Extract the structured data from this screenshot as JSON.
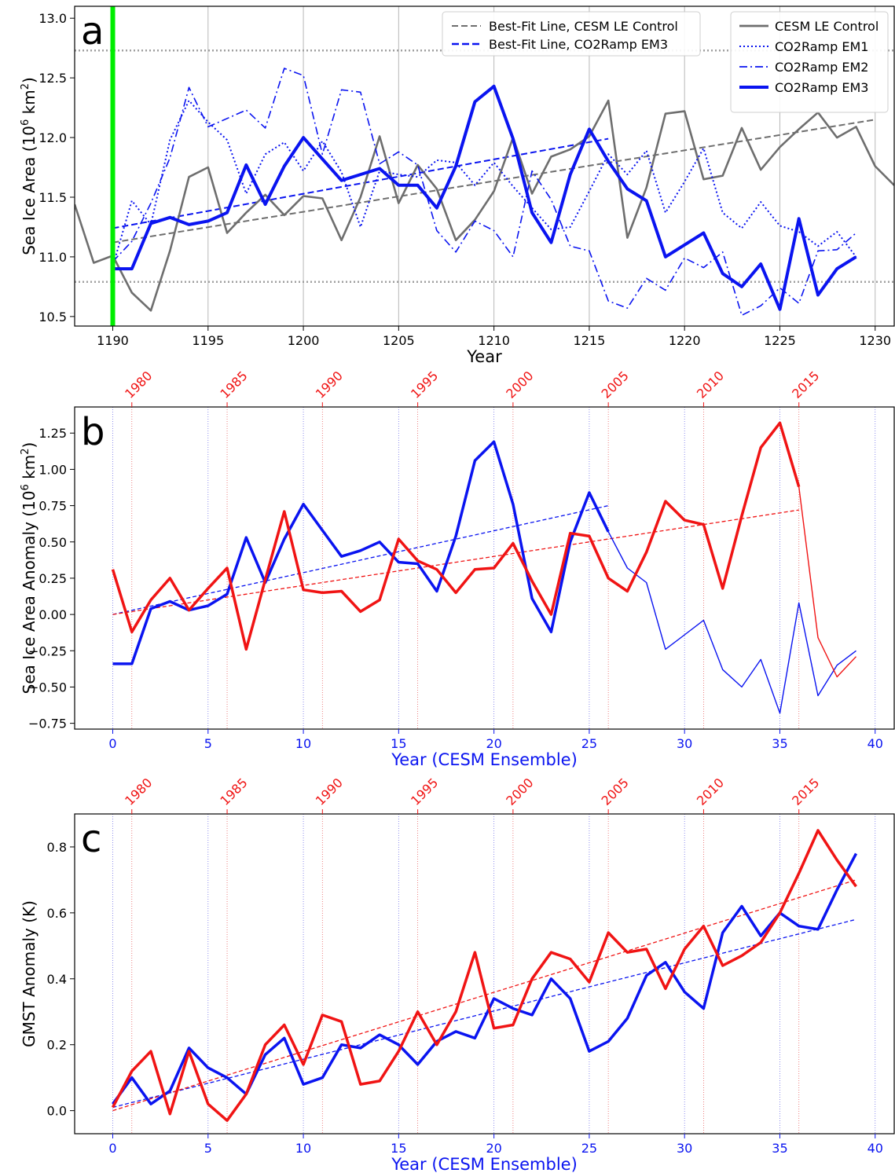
{
  "colors": {
    "control": "#6e6e6e",
    "ramp": "#0a14f0",
    "obs": "#f01414",
    "marker": "#00ee00",
    "limit": "#a0a0a0",
    "obsGrid": "#e86060",
    "ensGrid": "#7070e8"
  },
  "chart_data": [
    {
      "id": "a",
      "type": "line",
      "panel_label": "a",
      "xlabel": "Year",
      "ylabel": "Sea Ice Area (10",
      "ylabel_sup": "6",
      "ylabel_tail": " km",
      "ylabel_sup2": "2",
      "ylabel_end": ")",
      "xlim": [
        1188,
        1231
      ],
      "ylim": [
        10.42,
        13.1
      ],
      "xticks": [
        1190,
        1195,
        1200,
        1205,
        1210,
        1215,
        1220,
        1225,
        1230
      ],
      "yticks": [
        10.5,
        11.0,
        11.5,
        12.0,
        12.5,
        13.0
      ],
      "ytick_labels": [
        "10.5",
        "11.0",
        "11.5",
        "12.0",
        "12.5",
        "13.0"
      ],
      "grid": "x",
      "reference_lines": [
        {
          "y": 12.73
        },
        {
          "y": 10.79
        }
      ],
      "start_marker_x": 1190,
      "legend_left": [
        "Best-Fit Line, CESM LE Control",
        "Best-Fit Line, CO2Ramp EM3"
      ],
      "legend_right": [
        "CESM LE Control",
        "CO2Ramp EM1",
        "CO2Ramp EM2",
        "CO2Ramp EM3"
      ],
      "series": [
        {
          "name": "CESM LE Control",
          "style": "control",
          "x_start": 1188,
          "values": [
            11.44,
            10.95,
            11.01,
            10.7,
            10.55,
            11.05,
            11.67,
            11.75,
            11.2,
            11.37,
            11.52,
            11.35,
            11.51,
            11.49,
            11.14,
            11.5,
            12.01,
            11.45,
            11.77,
            11.57,
            11.14,
            11.31,
            11.55,
            12.0,
            11.53,
            11.84,
            11.9,
            12.01,
            12.31,
            11.16,
            11.58,
            12.2,
            12.22,
            11.65,
            11.68,
            12.08,
            11.73,
            11.92,
            12.07,
            12.21,
            12.0,
            12.09,
            11.76,
            11.6
          ]
        },
        {
          "name": "CO2Ramp EM1",
          "style": "dotted",
          "x_start": 1190,
          "values": [
            10.92,
            11.47,
            11.27,
            11.98,
            12.31,
            12.13,
            11.98,
            11.53,
            11.86,
            11.96,
            11.72,
            11.97,
            11.71,
            11.25,
            11.72,
            11.69,
            11.67,
            11.81,
            11.79,
            11.6,
            11.79,
            11.59,
            11.41,
            11.23,
            11.25,
            11.55,
            11.86,
            11.69,
            11.89,
            11.37,
            11.63,
            11.91,
            11.37,
            11.24,
            11.46,
            11.26,
            11.21,
            11.09,
            11.21,
            11.0
          ]
        },
        {
          "name": "CO2Ramp EM2",
          "style": "dashdot",
          "x_start": 1190,
          "values": [
            10.96,
            11.13,
            11.45,
            11.83,
            12.42,
            12.09,
            12.16,
            12.23,
            12.08,
            12.58,
            12.52,
            11.86,
            12.4,
            12.38,
            11.78,
            11.88,
            11.77,
            11.22,
            11.04,
            11.3,
            11.22,
            11.0,
            11.72,
            11.48,
            11.09,
            11.05,
            10.63,
            10.57,
            10.82,
            10.72,
            10.99,
            10.91,
            11.04,
            10.51,
            10.59,
            10.74,
            10.61,
            11.05,
            11.06,
            11.2
          ]
        },
        {
          "name": "CO2Ramp EM3",
          "style": "thick",
          "x_start": 1190,
          "values": [
            10.9,
            10.9,
            11.28,
            11.33,
            11.27,
            11.3,
            11.37,
            11.77,
            11.44,
            11.76,
            12.0,
            11.82,
            11.64,
            11.69,
            11.74,
            11.6,
            11.6,
            11.41,
            11.76,
            12.3,
            12.43,
            11.99,
            11.37,
            11.12,
            11.69,
            12.07,
            11.8,
            11.57,
            11.47,
            11.0,
            11.1,
            11.2,
            10.86,
            10.75,
            10.94,
            10.56,
            11.32,
            10.68,
            10.9,
            11.0
          ]
        }
      ],
      "trendlines": [
        {
          "name": "Best-Fit Line, CESM LE Control",
          "style": "control",
          "x": [
            1190,
            1230
          ],
          "y": [
            11.12,
            12.15
          ]
        },
        {
          "name": "Best-Fit Line, CO2Ramp EM3",
          "style": "ramp",
          "x": [
            1190,
            1216
          ],
          "y": [
            11.24,
            11.99
          ]
        }
      ]
    },
    {
      "id": "b",
      "type": "line",
      "panel_label": "b",
      "xlabel": "Year (CESM Ensemble)",
      "ylabel": "Sea Ice Area Anomaly (10",
      "ylabel_sup": "6",
      "ylabel_tail": " km",
      "ylabel_sup2": "2",
      "ylabel_end": ")",
      "xlim": [
        -2,
        41
      ],
      "ylim": [
        -0.79,
        1.43
      ],
      "xticks": [
        0,
        5,
        10,
        15,
        20,
        25,
        30,
        35,
        40
      ],
      "yticks": [
        -0.75,
        -0.5,
        -0.25,
        0.0,
        0.25,
        0.5,
        0.75,
        1.0,
        1.25
      ],
      "ytick_labels": [
        "−0.75",
        "−0.50",
        "−0.25",
        "0.00",
        "0.25",
        "0.50",
        "0.75",
        "1.00",
        "1.25"
      ],
      "top_ticks": [
        1,
        6,
        11,
        16,
        21,
        26,
        31,
        36
      ],
      "top_tick_labels": [
        "1980",
        "1985",
        "1990",
        "1995",
        "2000",
        "2005",
        "2010",
        "2015"
      ],
      "series": [
        {
          "name": "",
          "style": "ens",
          "thick_until": 26,
          "values": [
            -0.34,
            -0.34,
            0.04,
            0.09,
            0.03,
            0.06,
            0.14,
            0.53,
            0.22,
            0.52,
            0.76,
            0.58,
            0.4,
            0.44,
            0.5,
            0.36,
            0.35,
            0.16,
            0.54,
            1.06,
            1.19,
            0.76,
            0.11,
            -0.12,
            0.5,
            0.84,
            0.57,
            0.32,
            0.22,
            -0.24,
            -0.14,
            -0.04,
            -0.38,
            -0.5,
            -0.31,
            -0.68,
            0.08,
            -0.56,
            -0.35,
            -0.25
          ]
        },
        {
          "name": "",
          "style": "obs",
          "thick_until": 36,
          "values": [
            0.31,
            -0.12,
            0.1,
            0.25,
            0.03,
            0.18,
            0.32,
            -0.24,
            0.24,
            0.71,
            0.17,
            0.15,
            0.16,
            0.02,
            0.1,
            0.52,
            0.37,
            0.31,
            0.15,
            0.31,
            0.32,
            0.49,
            0.23,
            0.0,
            0.56,
            0.54,
            0.25,
            0.16,
            0.43,
            0.78,
            0.65,
            0.62,
            0.18,
            0.68,
            1.15,
            1.32,
            0.88,
            -0.16,
            -0.43,
            -0.29
          ]
        }
      ],
      "trendlines": [
        {
          "name": "",
          "style": "ens",
          "x": [
            0,
            26
          ],
          "y": [
            0.0,
            0.75
          ]
        },
        {
          "name": "",
          "style": "obs",
          "x": [
            0,
            36
          ],
          "y": [
            0.0,
            0.72
          ]
        }
      ]
    },
    {
      "id": "c",
      "type": "line",
      "panel_label": "c",
      "xlabel": "Year (CESM Ensemble)",
      "ylabel": "GMST Anomaly (K)",
      "ylabel_sup": "",
      "ylabel_tail": "",
      "ylabel_sup2": "",
      "ylabel_end": "",
      "xlim": [
        -2,
        41
      ],
      "ylim": [
        -0.07,
        0.9
      ],
      "xticks": [
        0,
        5,
        10,
        15,
        20,
        25,
        30,
        35,
        40
      ],
      "yticks": [
        0.0,
        0.2,
        0.4,
        0.6,
        0.8
      ],
      "ytick_labels": [
        "0.0",
        "0.2",
        "0.4",
        "0.6",
        "0.8"
      ],
      "top_ticks": [
        1,
        6,
        11,
        16,
        21,
        26,
        31,
        36
      ],
      "top_tick_labels": [
        "1980",
        "1985",
        "1990",
        "1995",
        "2000",
        "2005",
        "2010",
        "2015"
      ],
      "series": [
        {
          "name": "",
          "style": "ens",
          "thick_until": 39,
          "values": [
            0.02,
            0.1,
            0.02,
            0.06,
            0.19,
            0.13,
            0.1,
            0.05,
            0.17,
            0.22,
            0.08,
            0.1,
            0.2,
            0.19,
            0.23,
            0.2,
            0.14,
            0.21,
            0.24,
            0.22,
            0.34,
            0.31,
            0.29,
            0.4,
            0.34,
            0.18,
            0.21,
            0.28,
            0.41,
            0.45,
            0.36,
            0.31,
            0.54,
            0.62,
            0.53,
            0.6,
            0.56,
            0.55,
            0.67,
            0.78
          ]
        },
        {
          "name": "",
          "style": "obs",
          "thick_until": 39,
          "values": [
            0.01,
            0.12,
            0.18,
            -0.01,
            0.18,
            0.02,
            -0.03,
            0.05,
            0.2,
            0.26,
            0.14,
            0.29,
            0.27,
            0.08,
            0.09,
            0.18,
            0.3,
            0.2,
            0.3,
            0.48,
            0.25,
            0.26,
            0.4,
            0.48,
            0.46,
            0.39,
            0.54,
            0.48,
            0.49,
            0.37,
            0.49,
            0.56,
            0.44,
            0.47,
            0.51,
            0.6,
            0.72,
            0.85,
            0.76,
            0.68
          ]
        }
      ],
      "trendlines": [
        {
          "name": "",
          "style": "ens",
          "x": [
            0,
            39
          ],
          "y": [
            0.01,
            0.58
          ]
        },
        {
          "name": "",
          "style": "obs",
          "x": [
            0,
            39
          ],
          "y": [
            0.0,
            0.7
          ]
        }
      ]
    }
  ]
}
